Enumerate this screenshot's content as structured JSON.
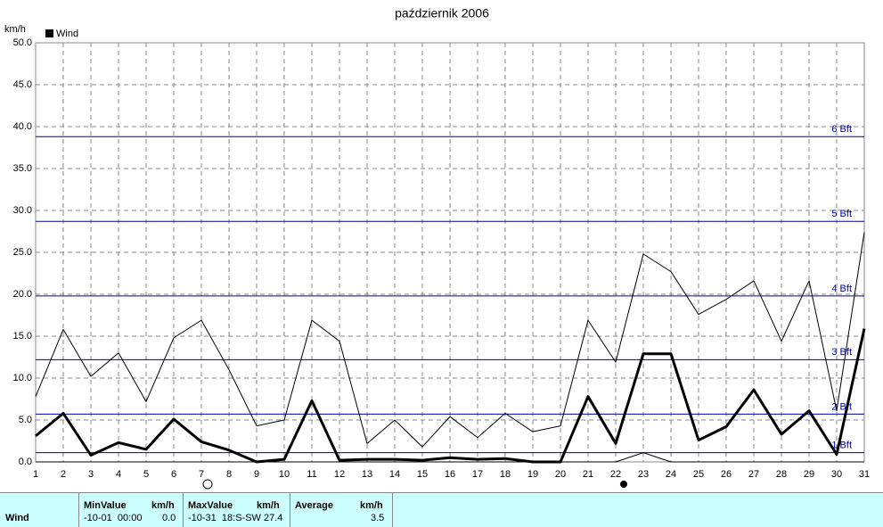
{
  "chart_data": {
    "type": "line",
    "title": "październik 2006",
    "y_label": "km/h",
    "legend_label": "Wind",
    "legend_color": "#000000",
    "x": [
      1,
      2,
      3,
      4,
      5,
      6,
      7,
      8,
      9,
      10,
      11,
      12,
      13,
      14,
      15,
      16,
      17,
      18,
      19,
      20,
      21,
      22,
      23,
      24,
      25,
      26,
      27,
      28,
      29,
      30,
      31
    ],
    "xlim": [
      1,
      31
    ],
    "ylim": [
      0,
      50
    ],
    "yticks": [
      {
        "value": 0,
        "label": "0.0"
      },
      {
        "value": 5,
        "label": "5.0"
      },
      {
        "value": 10,
        "label": "10.0"
      },
      {
        "value": 15,
        "label": "15.0"
      },
      {
        "value": 20,
        "label": "20.0"
      },
      {
        "value": 25,
        "label": "25.0"
      },
      {
        "value": 30,
        "label": "30.0"
      },
      {
        "value": 35,
        "label": "35.0"
      },
      {
        "value": 40,
        "label": "40.0"
      },
      {
        "value": 45,
        "label": "45.0"
      },
      {
        "value": 50,
        "label": "50.0"
      }
    ],
    "grid": true,
    "series": [
      {
        "color": "#000000",
        "width": 1,
        "values": [
          7.8,
          15.8,
          10.2,
          13.0,
          7.2,
          14.8,
          16.9,
          11.0,
          4.3,
          5.0,
          16.9,
          14.4,
          2.2,
          5.0,
          1.8,
          5.4,
          2.9,
          5.8,
          3.6,
          4.3,
          16.9,
          11.9,
          24.8,
          22.7,
          17.6,
          19.4,
          21.6,
          14.4,
          21.6,
          6.1,
          27.4
        ]
      },
      {
        "color": "#000000",
        "width": 3,
        "values": [
          3.1,
          5.8,
          0.8,
          2.3,
          1.5,
          5.1,
          2.4,
          1.4,
          0.0,
          0.3,
          7.3,
          0.2,
          0.3,
          0.3,
          0.2,
          0.5,
          0.3,
          0.4,
          0.0,
          0.0,
          7.8,
          2.2,
          12.9,
          12.9,
          2.6,
          4.2,
          8.6,
          3.3,
          6.1,
          0.9,
          15.9
        ]
      },
      {
        "color": "#000000",
        "width": 1,
        "values": [
          0,
          0,
          0,
          0,
          0,
          0,
          0,
          0,
          0,
          0,
          0,
          0,
          0,
          0,
          0,
          0,
          0,
          0,
          0,
          0,
          0,
          0,
          1.1,
          0,
          0,
          0,
          0,
          0,
          0,
          0,
          0
        ]
      }
    ],
    "reference_lines": [
      {
        "value": 1.1,
        "label": "1 Bft"
      },
      {
        "value": 5.7,
        "label": "2 Bft"
      },
      {
        "value": 12.2,
        "label": "3 Bft"
      },
      {
        "value": 19.8,
        "label": "4 Bft"
      },
      {
        "value": 28.7,
        "label": "5 Bft"
      },
      {
        "value": 38.8,
        "label": "6 Bft"
      }
    ],
    "reference_color": "#0000aa"
  },
  "stats_table": {
    "row_label": "Wind",
    "min": {
      "header": "MinValue",
      "unit": "km/h",
      "when": "-10-01  00:00",
      "value": "0.0"
    },
    "max": {
      "header": "MaxValue",
      "unit": "km/h",
      "when": "-10-31  18:S-SW 27.4"
    },
    "avg": {
      "header": "Average",
      "unit": "km/h",
      "value": "3.5"
    }
  }
}
